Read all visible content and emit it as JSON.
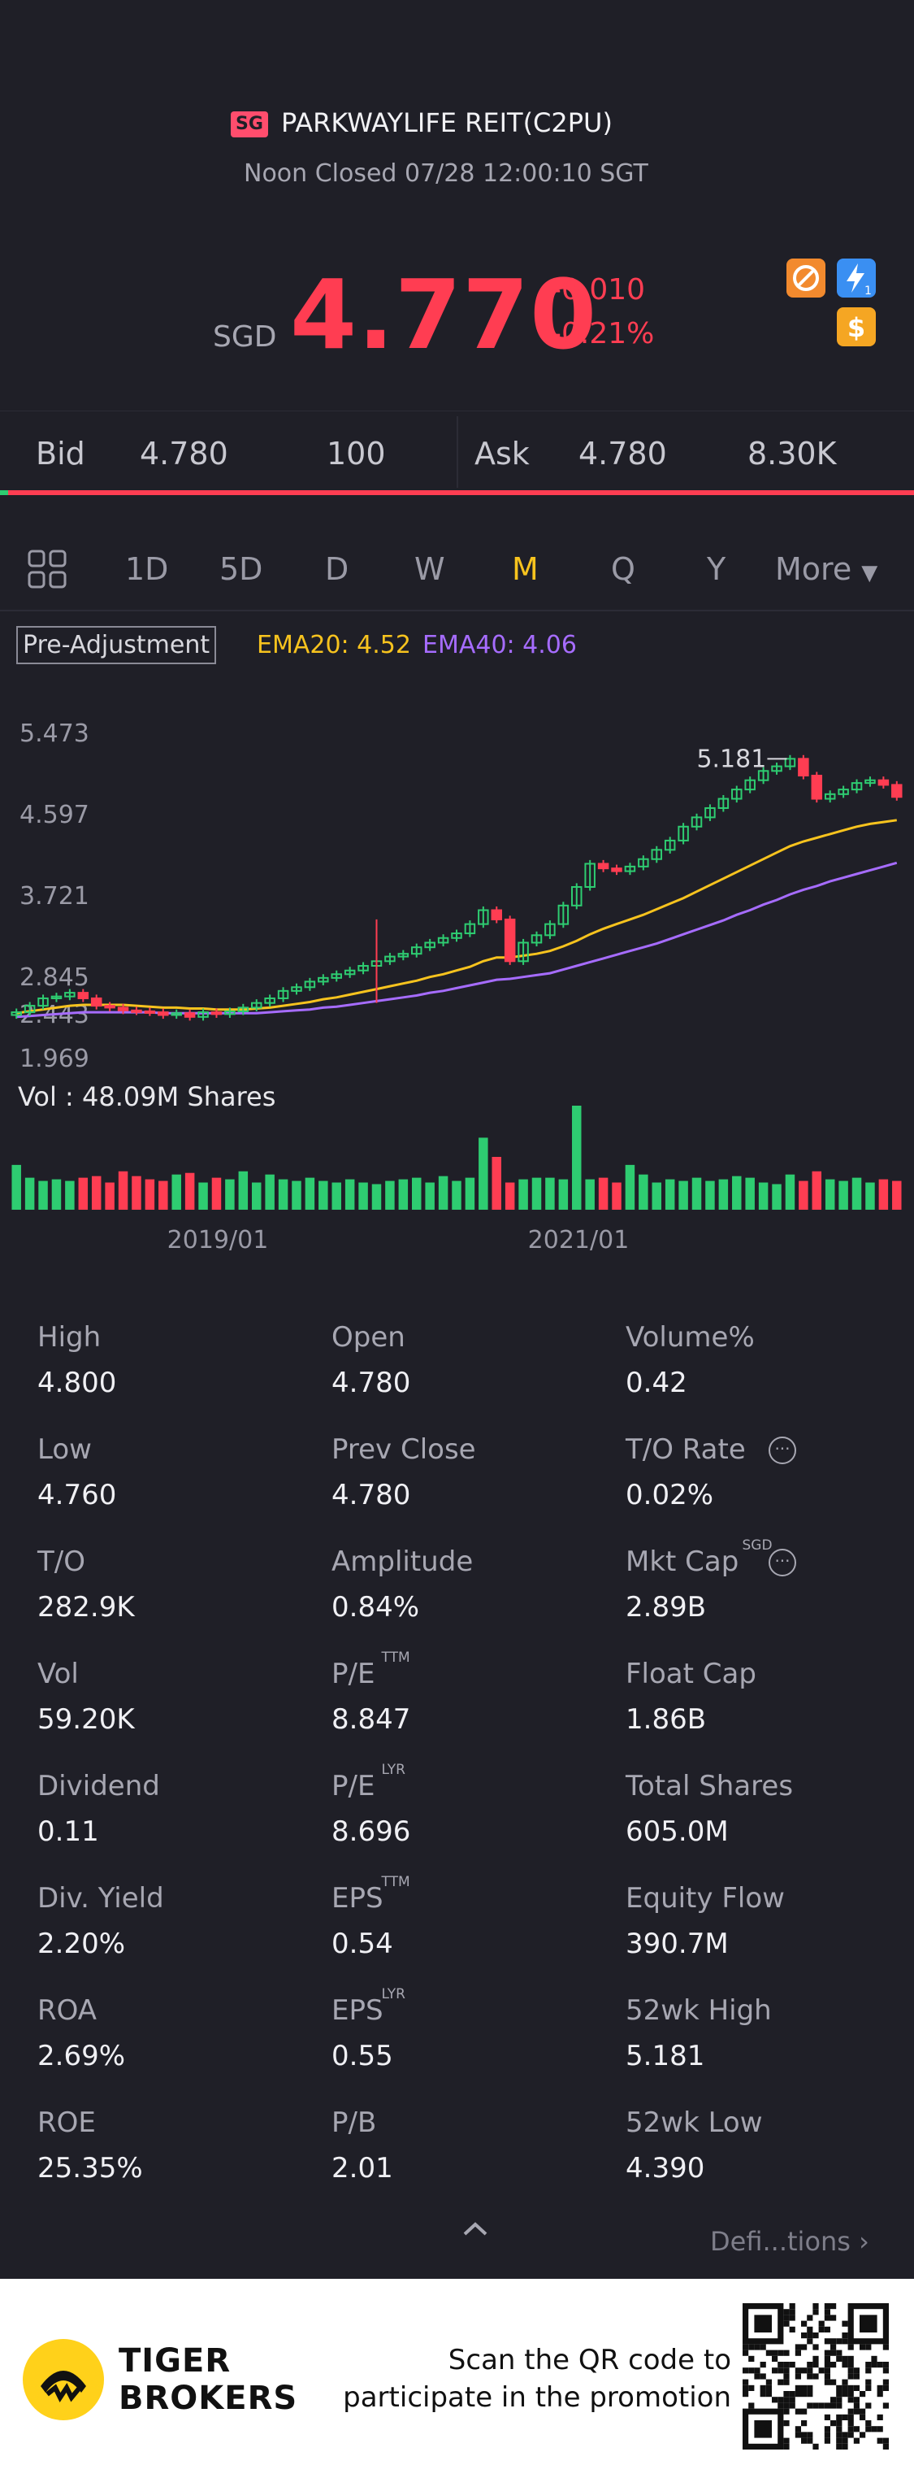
{
  "header": {
    "market_badge": "SG",
    "title": "PARKWAYLIFE REIT(C2PU)",
    "status": "Noon Closed 07/28 12:00:10 SGT",
    "currency": "SGD",
    "price": "4.770",
    "change": "-0.010",
    "change_pct": "-0.21%",
    "colors": {
      "down": "#ff3d52",
      "up": "#2ecc71",
      "accent": "#f7c31e"
    }
  },
  "quote": {
    "bid_label": "Bid",
    "bid_price": "4.780",
    "bid_size": "100",
    "ask_label": "Ask",
    "ask_price": "4.780",
    "ask_size": "8.30K"
  },
  "tabs": {
    "items": [
      "1D",
      "5D",
      "D",
      "W",
      "M",
      "Q",
      "Y"
    ],
    "active": "M",
    "more": "More"
  },
  "indicators": {
    "adjustment": "Pre-Adjustment",
    "ema20": "EMA20: 4.52",
    "ema40": "EMA40: 4.06"
  },
  "chart_data": {
    "type": "candlestick",
    "y_ticks": [
      "5.473",
      "4.597",
      "3.721",
      "2.845",
      "2.443",
      "1.969"
    ],
    "ylim": [
      1.969,
      5.473
    ],
    "max_annotation": "5.181",
    "x_ticks": [
      "2019/01",
      "2021/01"
    ],
    "close": [
      2.45,
      2.52,
      2.6,
      2.62,
      2.66,
      2.6,
      2.52,
      2.5,
      2.47,
      2.46,
      2.45,
      2.42,
      2.44,
      2.4,
      2.45,
      2.43,
      2.46,
      2.5,
      2.55,
      2.6,
      2.68,
      2.72,
      2.78,
      2.82,
      2.86,
      2.9,
      2.95,
      3.0,
      3.05,
      3.08,
      3.15,
      3.2,
      3.25,
      3.3,
      3.4,
      3.55,
      3.45,
      3.0,
      3.2,
      3.28,
      3.4,
      3.6,
      3.8,
      4.05,
      4.0,
      3.97,
      4.02,
      4.1,
      4.2,
      4.3,
      4.45,
      4.55,
      4.65,
      4.75,
      4.85,
      4.95,
      5.05,
      5.1,
      5.181,
      5.0,
      4.75,
      4.8,
      4.85,
      4.92,
      4.95,
      4.9,
      4.77
    ],
    "ema20": [
      2.44,
      2.46,
      2.48,
      2.5,
      2.52,
      2.53,
      2.53,
      2.53,
      2.53,
      2.52,
      2.51,
      2.5,
      2.5,
      2.49,
      2.49,
      2.48,
      2.48,
      2.48,
      2.49,
      2.5,
      2.52,
      2.54,
      2.56,
      2.59,
      2.61,
      2.64,
      2.67,
      2.7,
      2.73,
      2.76,
      2.79,
      2.83,
      2.86,
      2.9,
      2.94,
      3.0,
      3.04,
      3.04,
      3.06,
      3.08,
      3.11,
      3.16,
      3.22,
      3.29,
      3.35,
      3.4,
      3.45,
      3.5,
      3.56,
      3.62,
      3.68,
      3.75,
      3.82,
      3.89,
      3.96,
      4.03,
      4.1,
      4.17,
      4.24,
      4.29,
      4.33,
      4.37,
      4.41,
      4.45,
      4.48,
      4.5,
      4.52
    ],
    "ema40": [
      2.4,
      2.41,
      2.42,
      2.43,
      2.44,
      2.45,
      2.45,
      2.45,
      2.45,
      2.45,
      2.45,
      2.44,
      2.44,
      2.44,
      2.44,
      2.44,
      2.44,
      2.44,
      2.44,
      2.45,
      2.46,
      2.47,
      2.48,
      2.5,
      2.51,
      2.53,
      2.55,
      2.57,
      2.59,
      2.61,
      2.63,
      2.66,
      2.68,
      2.71,
      2.74,
      2.77,
      2.8,
      2.81,
      2.83,
      2.85,
      2.87,
      2.91,
      2.95,
      2.99,
      3.03,
      3.07,
      3.11,
      3.15,
      3.19,
      3.24,
      3.29,
      3.34,
      3.39,
      3.44,
      3.5,
      3.55,
      3.61,
      3.66,
      3.72,
      3.77,
      3.81,
      3.86,
      3.9,
      3.94,
      3.98,
      4.02,
      4.06
    ],
    "volume_label": "Vol  : 48.09M Shares",
    "volumes_m": [
      28,
      20,
      18,
      19,
      18,
      20,
      21,
      17,
      24,
      21,
      19,
      18,
      22,
      23,
      17,
      20,
      19,
      24,
      17,
      22,
      19,
      18,
      20,
      18,
      17,
      19,
      17,
      16,
      18,
      19,
      20,
      17,
      21,
      18,
      20,
      45,
      33,
      17,
      19,
      20,
      20,
      19,
      65,
      19,
      20,
      17,
      28,
      22,
      17,
      19,
      18,
      20,
      18,
      19,
      21,
      20,
      17,
      16,
      22,
      18,
      24,
      19,
      18,
      20,
      17,
      19,
      18
    ]
  },
  "stats": [
    [
      {
        "label": "High",
        "value": "4.800"
      },
      {
        "label": "Open",
        "value": "4.780"
      },
      {
        "label": "Volume%",
        "value": "0.42"
      }
    ],
    [
      {
        "label": "Low",
        "value": "4.760"
      },
      {
        "label": "Prev Close",
        "value": "4.780"
      },
      {
        "label": "T/O Rate",
        "value": "0.02%"
      }
    ],
    [
      {
        "label": "T/O",
        "value": "282.9K"
      },
      {
        "label": "Amplitude",
        "value": "0.84%"
      },
      {
        "label": "Mkt Cap",
        "value": "2.89B",
        "sup": "SGD"
      }
    ],
    [
      {
        "label": "Vol",
        "value": "59.20K"
      },
      {
        "label": "P/E",
        "value": "8.847",
        "sup": "TTM"
      },
      {
        "label": "Float Cap",
        "value": "1.86B"
      }
    ],
    [
      {
        "label": "Dividend",
        "value": "0.11"
      },
      {
        "label": "P/E",
        "value": "8.696",
        "sup": "LYR"
      },
      {
        "label": "Total Shares",
        "value": "605.0M"
      }
    ],
    [
      {
        "label": "Div. Yield",
        "value": "2.20%"
      },
      {
        "label": "EPS",
        "value": "0.54",
        "sup": "TTM"
      },
      {
        "label": "Equity Flow",
        "value": "390.7M"
      }
    ],
    [
      {
        "label": "ROA",
        "value": "2.69%"
      },
      {
        "label": "EPS",
        "value": "0.55",
        "sup": "LYR"
      },
      {
        "label": "52wk High",
        "value": "5.181"
      }
    ],
    [
      {
        "label": "ROE",
        "value": "25.35%"
      },
      {
        "label": "P/B",
        "value": "2.01"
      },
      {
        "label": "52wk Low",
        "value": "4.390"
      }
    ]
  ],
  "definitions_link": "Defi...tions",
  "footer": {
    "brand_line1": "TIGER",
    "brand_line2": "BROKERS",
    "promo_line1": "Scan the QR code to",
    "promo_line2": "participate in the promotion"
  }
}
